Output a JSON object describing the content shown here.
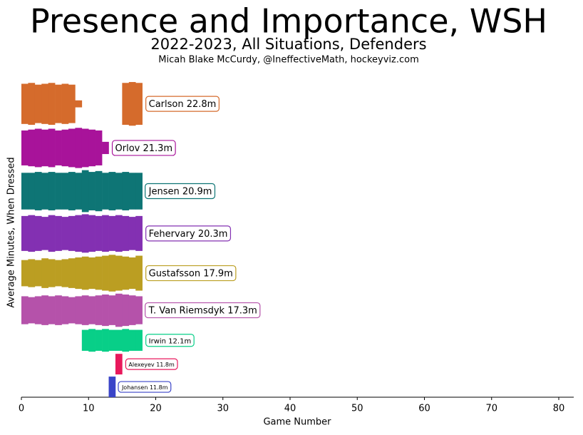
{
  "chart_data": {
    "type": "presence",
    "title": "Presence and Importance, WSH",
    "subtitle": "2022-2023, All Situations, Defenders",
    "credit": "Micah Blake McCurdy, @IneffectiveMath, hockeyviz.com",
    "xlabel": "Game Number",
    "ylabel": "Average Minutes, When Dressed",
    "xlim": [
      0,
      82
    ],
    "xticks": [
      0,
      10,
      20,
      30,
      40,
      50,
      60,
      70,
      80
    ],
    "series": [
      {
        "name": "Carlson 22.8m",
        "color": "#d56b2c",
        "values": [
          23,
          24,
          22,
          23,
          24,
          22,
          23,
          22,
          4,
          null,
          null,
          null,
          null,
          null,
          null,
          24,
          25,
          24
        ]
      },
      {
        "name": "Orlov 21.3m",
        "color": "#a8139a",
        "values": [
          20,
          21,
          22,
          21,
          22,
          20,
          21,
          22,
          23,
          22,
          21,
          20,
          7,
          null,
          null,
          null,
          null,
          null
        ]
      },
      {
        "name": "Jensen 20.9m",
        "color": "#0e7575",
        "values": [
          21,
          21,
          22,
          21,
          22,
          21,
          21,
          22,
          21,
          24,
          22,
          23,
          21,
          22,
          21,
          22,
          21,
          21
        ]
      },
      {
        "name": "Fehervary 20.3m",
        "color": "#8330b2",
        "values": [
          20,
          21,
          20,
          19,
          21,
          20,
          19,
          20,
          21,
          22,
          21,
          20,
          21,
          20,
          21,
          20,
          19,
          20
        ]
      },
      {
        "name": "Gustafsson 17.9m",
        "color": "#bb9e22",
        "values": [
          15,
          16,
          15,
          17,
          16,
          15,
          16,
          17,
          18,
          19,
          18,
          19,
          20,
          21,
          20,
          19,
          18,
          20
        ]
      },
      {
        "name": "T. Van Riemsdyk 17.3m",
        "color": "#b552aa",
        "values": [
          16,
          15,
          16,
          17,
          16,
          17,
          16,
          15,
          16,
          17,
          16,
          17,
          18,
          17,
          19,
          18,
          17,
          16
        ]
      },
      {
        "name": "Irwin 12.1m",
        "color": "#08cf88",
        "values": [
          null,
          null,
          null,
          null,
          null,
          null,
          null,
          null,
          null,
          12,
          13,
          12,
          13,
          12,
          12,
          13,
          12,
          12
        ]
      },
      {
        "name": "Alexeyev 11.8m",
        "color": "#e8185c",
        "values": [
          null,
          null,
          null,
          null,
          null,
          null,
          null,
          null,
          null,
          null,
          null,
          null,
          null,
          null,
          11.8,
          null,
          null,
          null
        ]
      },
      {
        "name": "Johansen 11.8m",
        "color": "#3a44c8",
        "values": [
          null,
          null,
          null,
          null,
          null,
          null,
          null,
          null,
          null,
          null,
          null,
          null,
          null,
          11.8,
          null,
          null,
          null,
          null
        ]
      }
    ]
  }
}
